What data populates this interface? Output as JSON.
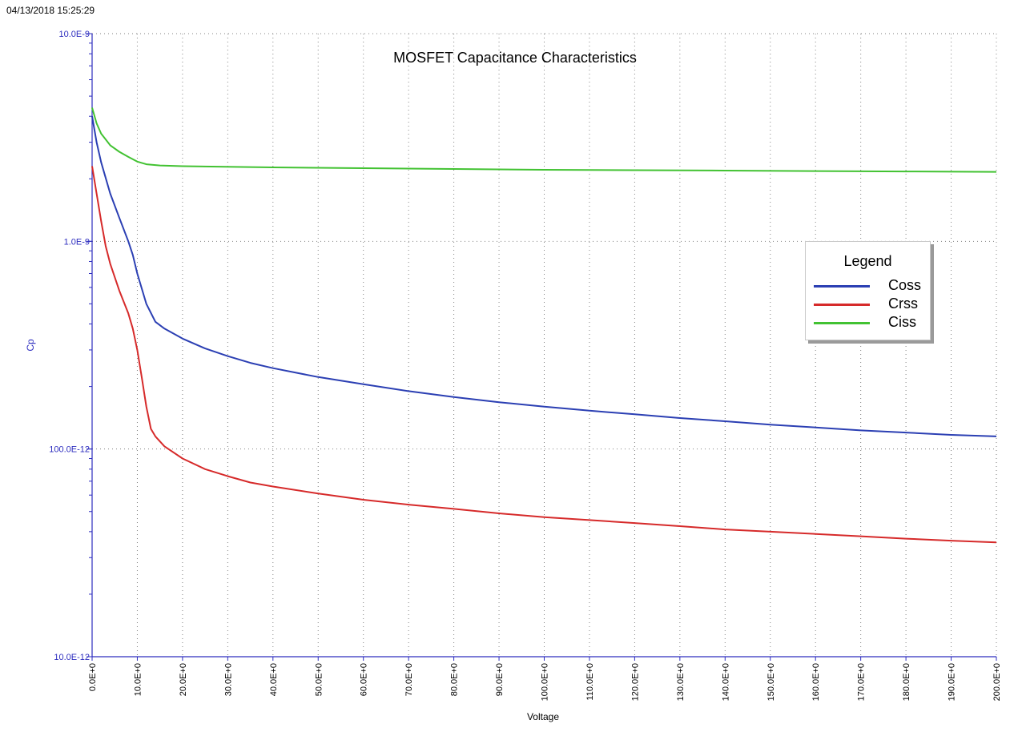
{
  "timestamp": "04/13/2018 15:25:29",
  "colors": {
    "axis": "#2d2dbf",
    "grid": "#808080",
    "coss": "#2b3fb3",
    "crss": "#d62a2a",
    "ciss": "#42c232"
  },
  "chart_data": {
    "type": "line",
    "title": "MOSFET Capacitance Characteristics",
    "xlabel": "Voltage",
    "ylabel": "Cp",
    "xlim": [
      0,
      200
    ],
    "ylim": [
      1e-11,
      1e-08
    ],
    "yscale": "log",
    "grid": true,
    "legend_title": "Legend",
    "legend_position": "right",
    "xticks": [
      {
        "value": 0,
        "label": "0.0E+0"
      },
      {
        "value": 10,
        "label": "10.0E+0"
      },
      {
        "value": 20,
        "label": "20.0E+0"
      },
      {
        "value": 30,
        "label": "30.0E+0"
      },
      {
        "value": 40,
        "label": "40.0E+0"
      },
      {
        "value": 50,
        "label": "50.0E+0"
      },
      {
        "value": 60,
        "label": "60.0E+0"
      },
      {
        "value": 70,
        "label": "70.0E+0"
      },
      {
        "value": 80,
        "label": "80.0E+0"
      },
      {
        "value": 90,
        "label": "90.0E+0"
      },
      {
        "value": 100,
        "label": "100.0E+0"
      },
      {
        "value": 110,
        "label": "110.0E+0"
      },
      {
        "value": 120,
        "label": "120.0E+0"
      },
      {
        "value": 130,
        "label": "130.0E+0"
      },
      {
        "value": 140,
        "label": "140.0E+0"
      },
      {
        "value": 150,
        "label": "150.0E+0"
      },
      {
        "value": 160,
        "label": "160.0E+0"
      },
      {
        "value": 170,
        "label": "170.0E+0"
      },
      {
        "value": 180,
        "label": "180.0E+0"
      },
      {
        "value": 190,
        "label": "190.0E+0"
      },
      {
        "value": 200,
        "label": "200.0E+0"
      }
    ],
    "yticks": [
      {
        "value": 1e-08,
        "label": "10.0E-9"
      },
      {
        "value": 1e-09,
        "label": "1.0E-9"
      },
      {
        "value": 1e-10,
        "label": "100.0E-12"
      },
      {
        "value": 1e-11,
        "label": "10.0E-12"
      }
    ],
    "series": [
      {
        "name": "Coss",
        "color": "#2b3fb3",
        "points": [
          [
            0,
            4e-09
          ],
          [
            1,
            3e-09
          ],
          [
            2,
            2.4e-09
          ],
          [
            4,
            1.7e-09
          ],
          [
            6,
            1.3e-09
          ],
          [
            8,
            1e-09
          ],
          [
            9,
            8.6e-10
          ],
          [
            10,
            7e-10
          ],
          [
            12,
            5e-10
          ],
          [
            14,
            4.1e-10
          ],
          [
            16,
            3.8e-10
          ],
          [
            20,
            3.4e-10
          ],
          [
            25,
            3.05e-10
          ],
          [
            30,
            2.8e-10
          ],
          [
            35,
            2.6e-10
          ],
          [
            40,
            2.45e-10
          ],
          [
            50,
            2.22e-10
          ],
          [
            60,
            2.05e-10
          ],
          [
            70,
            1.9e-10
          ],
          [
            80,
            1.78e-10
          ],
          [
            90,
            1.68e-10
          ],
          [
            100,
            1.6e-10
          ],
          [
            110,
            1.53e-10
          ],
          [
            120,
            1.47e-10
          ],
          [
            130,
            1.41e-10
          ],
          [
            140,
            1.36e-10
          ],
          [
            150,
            1.31e-10
          ],
          [
            160,
            1.27e-10
          ],
          [
            170,
            1.23e-10
          ],
          [
            180,
            1.2e-10
          ],
          [
            190,
            1.17e-10
          ],
          [
            200,
            1.15e-10
          ]
        ]
      },
      {
        "name": "Crss",
        "color": "#d62a2a",
        "points": [
          [
            0,
            2.3e-09
          ],
          [
            1,
            1.7e-09
          ],
          [
            2,
            1.25e-09
          ],
          [
            3,
            9.5e-10
          ],
          [
            4,
            7.8e-10
          ],
          [
            6,
            5.8e-10
          ],
          [
            8,
            4.5e-10
          ],
          [
            9,
            3.8e-10
          ],
          [
            10,
            3e-10
          ],
          [
            11,
            2.2e-10
          ],
          [
            12,
            1.6e-10
          ],
          [
            13,
            1.25e-10
          ],
          [
            14,
            1.15e-10
          ],
          [
            16,
            1.03e-10
          ],
          [
            20,
            9e-11
          ],
          [
            25,
            8e-11
          ],
          [
            30,
            7.4e-11
          ],
          [
            35,
            6.9e-11
          ],
          [
            40,
            6.6e-11
          ],
          [
            50,
            6.1e-11
          ],
          [
            60,
            5.7e-11
          ],
          [
            70,
            5.4e-11
          ],
          [
            80,
            5.15e-11
          ],
          [
            90,
            4.9e-11
          ],
          [
            100,
            4.7e-11
          ],
          [
            110,
            4.55e-11
          ],
          [
            120,
            4.4e-11
          ],
          [
            130,
            4.25e-11
          ],
          [
            140,
            4.1e-11
          ],
          [
            150,
            4e-11
          ],
          [
            160,
            3.9e-11
          ],
          [
            170,
            3.8e-11
          ],
          [
            180,
            3.7e-11
          ],
          [
            190,
            3.62e-11
          ],
          [
            200,
            3.55e-11
          ]
        ]
      },
      {
        "name": "Ciss",
        "color": "#42c232",
        "points": [
          [
            0,
            4.4e-09
          ],
          [
            1,
            3.7e-09
          ],
          [
            2,
            3.3e-09
          ],
          [
            4,
            2.9e-09
          ],
          [
            6,
            2.7e-09
          ],
          [
            8,
            2.55e-09
          ],
          [
            10,
            2.42e-09
          ],
          [
            12,
            2.35e-09
          ],
          [
            15,
            2.32e-09
          ],
          [
            20,
            2.3e-09
          ],
          [
            40,
            2.27e-09
          ],
          [
            60,
            2.25e-09
          ],
          [
            80,
            2.23e-09
          ],
          [
            100,
            2.21e-09
          ],
          [
            120,
            2.2e-09
          ],
          [
            140,
            2.19e-09
          ],
          [
            160,
            2.18e-09
          ],
          [
            180,
            2.17e-09
          ],
          [
            200,
            2.16e-09
          ]
        ]
      }
    ]
  }
}
